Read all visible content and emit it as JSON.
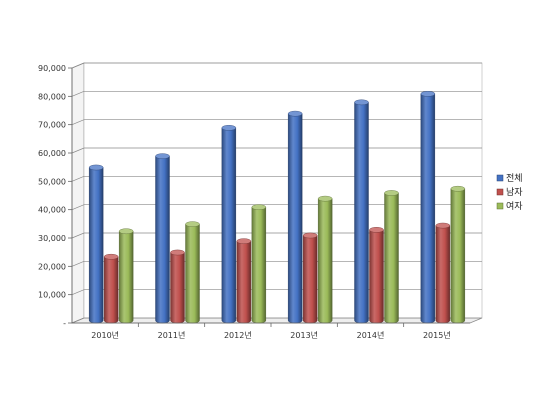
{
  "chart_data": {
    "type": "bar",
    "categories": [
      "2010년",
      "2011년",
      "2012년",
      "2013년",
      "2014년",
      "2015년"
    ],
    "series": [
      {
        "name": "전체",
        "values": [
          54000,
          58000,
          68000,
          73000,
          77000,
          80000
        ],
        "color": "#4472C4"
      },
      {
        "name": "남자",
        "values": [
          22500,
          24000,
          28000,
          30000,
          32000,
          33500
        ],
        "color": "#C0504D"
      },
      {
        "name": "여자",
        "values": [
          31500,
          34000,
          40000,
          43000,
          45000,
          46500
        ],
        "color": "#9BBB59"
      }
    ],
    "yticks": [
      "-",
      "10,000",
      "20,000",
      "30,000",
      "40,000",
      "50,000",
      "60,000",
      "70,000",
      "80,000",
      "90,000"
    ],
    "ylim": [
      0,
      90000
    ],
    "grid": true,
    "legend_position": "right",
    "style": "3d-cylinder"
  }
}
